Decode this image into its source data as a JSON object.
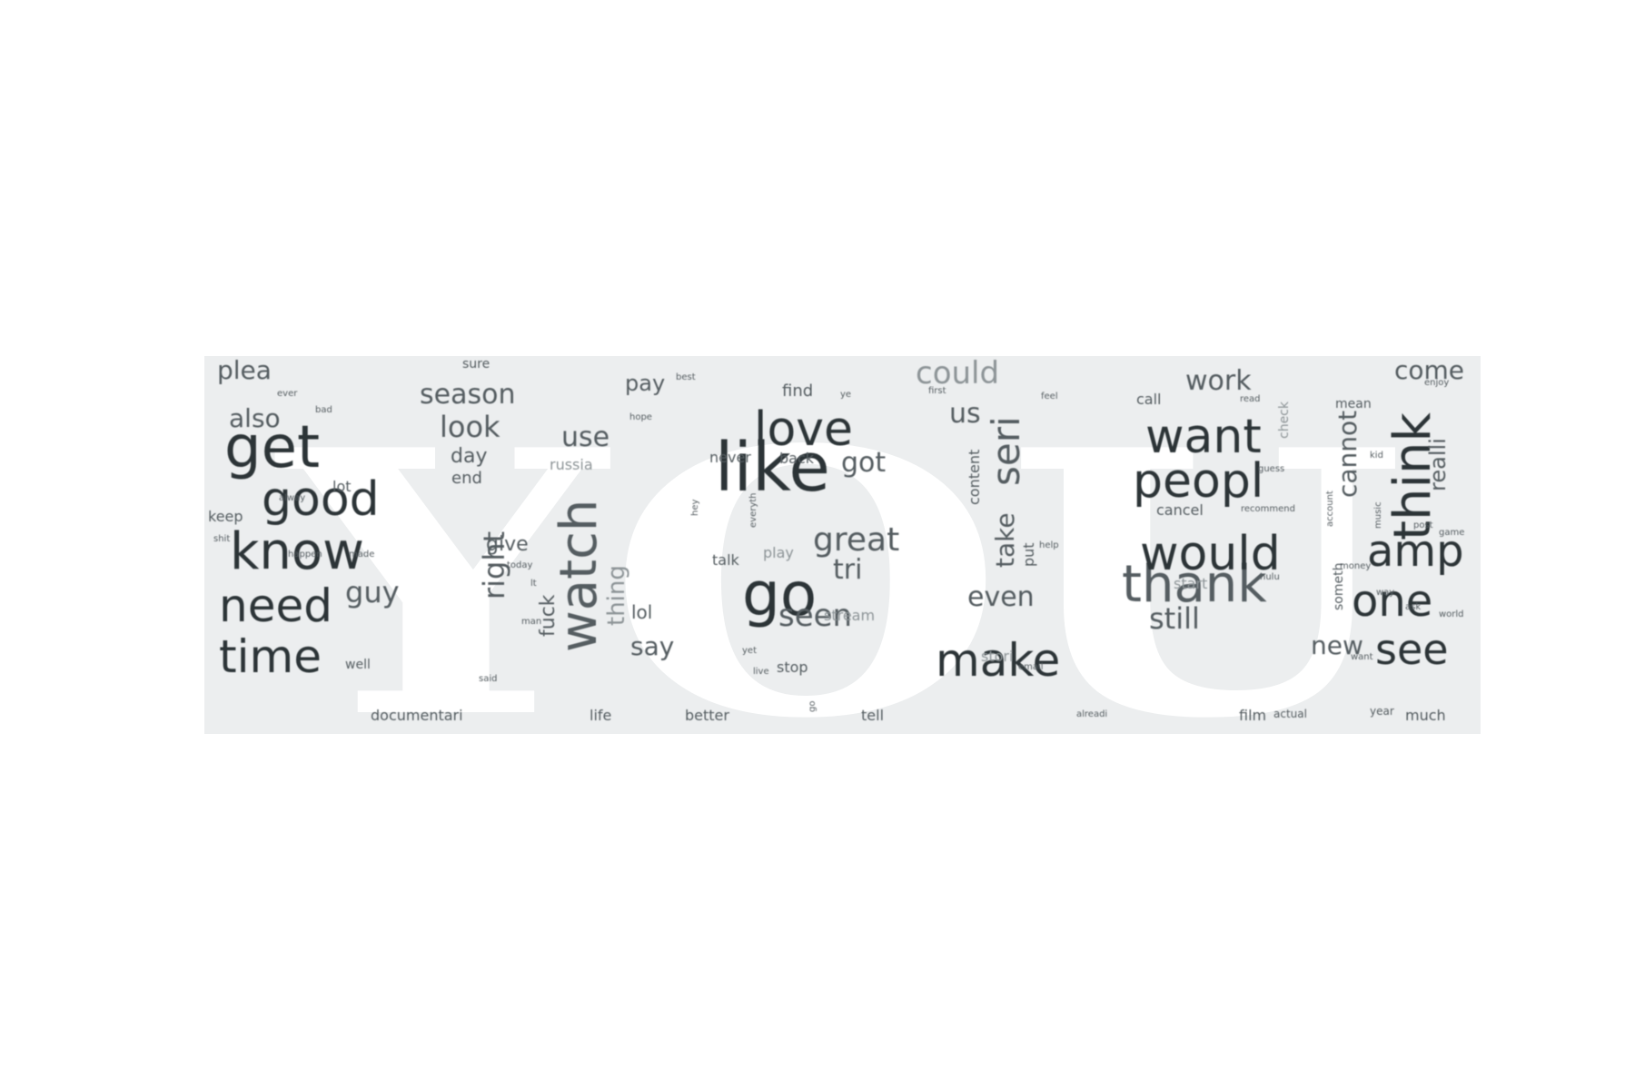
{
  "backdrop_text": "YOU",
  "colors": {
    "panel": "#eceeef",
    "backdrop": "#ffffff",
    "ink_dark": "#2c3437",
    "ink_mid": "#555d61",
    "ink_light": "#8d9497"
  },
  "words": [
    {
      "text": "like",
      "shade": "dark"
    },
    {
      "text": "watch",
      "shade": "mid"
    },
    {
      "text": "get",
      "shade": "dark"
    },
    {
      "text": "know",
      "shade": "dark"
    },
    {
      "text": "go",
      "shade": "dark"
    },
    {
      "text": "thank",
      "shade": "mid"
    },
    {
      "text": "would",
      "shade": "dark"
    },
    {
      "text": "peopl",
      "shade": "dark"
    },
    {
      "text": "think",
      "shade": "dark"
    },
    {
      "text": "love",
      "shade": "dark"
    },
    {
      "text": "make",
      "shade": "dark"
    },
    {
      "text": "time",
      "shade": "dark"
    },
    {
      "text": "need",
      "shade": "dark"
    },
    {
      "text": "good",
      "shade": "dark"
    },
    {
      "text": "want",
      "shade": "dark"
    },
    {
      "text": "see",
      "shade": "dark"
    },
    {
      "text": "one",
      "shade": "dark"
    },
    {
      "text": "amp",
      "shade": "dark"
    },
    {
      "text": "seri",
      "shade": "mid"
    },
    {
      "text": "great",
      "shade": "mid"
    },
    {
      "text": "seen",
      "shade": "mid"
    },
    {
      "text": "right",
      "shade": "mid"
    },
    {
      "text": "still",
      "shade": "mid"
    },
    {
      "text": "could",
      "shade": "light"
    },
    {
      "text": "season",
      "shade": "mid"
    },
    {
      "text": "look",
      "shade": "mid"
    },
    {
      "text": "also",
      "shade": "mid"
    },
    {
      "text": "guy",
      "shade": "mid"
    },
    {
      "text": "work",
      "shade": "mid"
    },
    {
      "text": "come",
      "shade": "mid"
    },
    {
      "text": "cannot",
      "shade": "mid"
    },
    {
      "text": "realli",
      "shade": "mid"
    },
    {
      "text": "even",
      "shade": "mid"
    },
    {
      "text": "tri",
      "shade": "mid"
    },
    {
      "text": "use",
      "shade": "mid"
    },
    {
      "text": "got",
      "shade": "mid"
    },
    {
      "text": "us",
      "shade": "mid"
    },
    {
      "text": "take",
      "shade": "mid"
    },
    {
      "text": "new",
      "shade": "mid"
    },
    {
      "text": "say",
      "shade": "mid"
    },
    {
      "text": "plea",
      "shade": "mid"
    },
    {
      "text": "thing",
      "shade": "light"
    },
    {
      "text": "fuck",
      "shade": "mid"
    },
    {
      "text": "give",
      "shade": "mid"
    },
    {
      "text": "pay",
      "shade": "mid"
    },
    {
      "text": "day",
      "shade": "mid"
    },
    {
      "text": "lol",
      "shade": "mid"
    },
    {
      "text": "end",
      "shade": "mid"
    },
    {
      "text": "lot",
      "shade": "mid"
    },
    {
      "text": "russia",
      "shade": "light"
    },
    {
      "text": "find",
      "shade": "mid"
    },
    {
      "text": "keep",
      "shade": "mid"
    },
    {
      "text": "never",
      "shade": "mid"
    },
    {
      "text": "back",
      "shade": "mid"
    },
    {
      "text": "talk",
      "shade": "mid"
    },
    {
      "text": "play",
      "shade": "light"
    },
    {
      "text": "stream",
      "shade": "light"
    },
    {
      "text": "stop",
      "shade": "mid"
    },
    {
      "text": "better",
      "shade": "mid"
    },
    {
      "text": "life",
      "shade": "mid"
    },
    {
      "text": "documentari",
      "shade": "mid"
    },
    {
      "text": "tell",
      "shade": "mid"
    },
    {
      "text": "film",
      "shade": "mid"
    },
    {
      "text": "much",
      "shade": "mid"
    },
    {
      "text": "stori",
      "shade": "light"
    },
    {
      "text": "put",
      "shade": "mid"
    },
    {
      "text": "content",
      "shade": "mid"
    },
    {
      "text": "call",
      "shade": "mid"
    },
    {
      "text": "cancel",
      "shade": "mid"
    },
    {
      "text": "start",
      "shade": "light"
    },
    {
      "text": "check",
      "shade": "light"
    },
    {
      "text": "mean",
      "shade": "mid"
    },
    {
      "text": "someth",
      "shade": "mid"
    },
    {
      "text": "sure",
      "shade": "mid"
    },
    {
      "text": "well",
      "shade": "mid"
    },
    {
      "text": "year",
      "shade": "mid"
    },
    {
      "text": "actual",
      "shade": "mid"
    },
    {
      "text": "alreadi",
      "shade": "mid"
    },
    {
      "text": "recommend",
      "shade": "mid"
    },
    {
      "text": "read",
      "shade": "mid"
    },
    {
      "text": "bad",
      "shade": "mid"
    },
    {
      "text": "alway",
      "shade": "mid"
    },
    {
      "text": "shit",
      "shade": "mid"
    },
    {
      "text": "happen",
      "shade": "mid"
    },
    {
      "text": "made",
      "shade": "mid"
    },
    {
      "text": "today",
      "shade": "mid"
    },
    {
      "text": "best",
      "shade": "mid"
    },
    {
      "text": "hope",
      "shade": "mid"
    },
    {
      "text": "first",
      "shade": "mid"
    },
    {
      "text": "feel",
      "shade": "mid"
    },
    {
      "text": "help",
      "shade": "mid"
    },
    {
      "text": "hulu",
      "shade": "mid"
    },
    {
      "text": "enjoy",
      "shade": "mid"
    },
    {
      "text": "game",
      "shade": "mid"
    },
    {
      "text": "world",
      "shade": "mid"
    },
    {
      "text": "ask",
      "shade": "mid"
    },
    {
      "text": "way",
      "shade": "mid"
    },
    {
      "text": "money",
      "shade": "mid"
    },
    {
      "text": "email",
      "shade": "mid"
    },
    {
      "text": "yet",
      "shade": "mid"
    },
    {
      "text": "live",
      "shade": "mid"
    },
    {
      "text": "ever",
      "shade": "mid"
    },
    {
      "text": "man",
      "shade": "mid"
    },
    {
      "text": "said",
      "shade": "mid"
    },
    {
      "text": "everyth",
      "shade": "mid"
    },
    {
      "text": "hey",
      "shade": "mid"
    },
    {
      "text": "go",
      "shade": "mid"
    },
    {
      "text": "lt",
      "shade": "mid"
    },
    {
      "text": "want",
      "shade": "mid"
    },
    {
      "text": "kid",
      "shade": "mid"
    },
    {
      "text": "account",
      "shade": "mid"
    },
    {
      "text": "music",
      "shade": "mid"
    },
    {
      "text": "ye",
      "shade": "mid"
    },
    {
      "text": "post",
      "shade": "mid"
    },
    {
      "text": "guess",
      "shade": "mid"
    }
  ]
}
